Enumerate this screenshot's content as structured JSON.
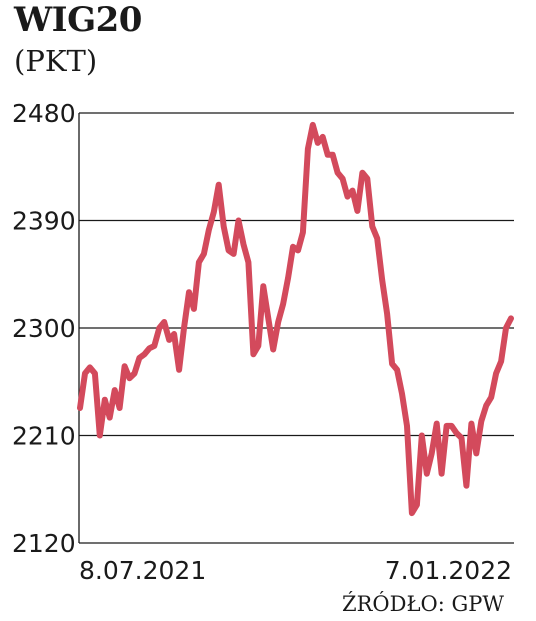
{
  "header": {
    "title": "WIG20",
    "subtitle": "(PKT)"
  },
  "footer": {
    "source": "ŹRÓDŁO: GPW"
  },
  "colors": {
    "line": "#d34a5c",
    "grid": "#1a1a1a",
    "text": "#1a1a1a"
  },
  "chart_data": {
    "type": "line",
    "title": "WIG20",
    "ylabel": "(PKT)",
    "ylim": [
      2120,
      2480
    ],
    "yticks": [
      2120,
      2210,
      2300,
      2390,
      2480
    ],
    "ytick_labels": [
      "2120",
      "2210",
      "2300",
      "2390",
      "2480"
    ],
    "x_start_label": "8.07.2021",
    "x_end_label": "7.01.2022",
    "grid": true,
    "series": [
      {
        "values": [
          2233,
          2262,
          2267,
          2262,
          2210,
          2240,
          2225,
          2248,
          2233,
          2268,
          2258,
          2262,
          2275,
          2278,
          2283,
          2285,
          2300,
          2305,
          2290,
          2295,
          2265,
          2300,
          2330,
          2316,
          2355,
          2362,
          2382,
          2397,
          2420,
          2385,
          2365,
          2362,
          2390,
          2370,
          2355,
          2278,
          2285,
          2335,
          2308,
          2282,
          2305,
          2320,
          2342,
          2368,
          2365,
          2380,
          2450,
          2470,
          2455,
          2460,
          2445,
          2445,
          2430,
          2425,
          2410,
          2415,
          2398,
          2430,
          2425,
          2385,
          2375,
          2340,
          2312,
          2270,
          2265,
          2245,
          2218,
          2145,
          2152,
          2210,
          2178,
          2195,
          2220,
          2178,
          2218,
          2218,
          2212,
          2208,
          2168,
          2220,
          2195,
          2222,
          2235,
          2242,
          2262,
          2272,
          2300,
          2308
        ]
      }
    ]
  }
}
